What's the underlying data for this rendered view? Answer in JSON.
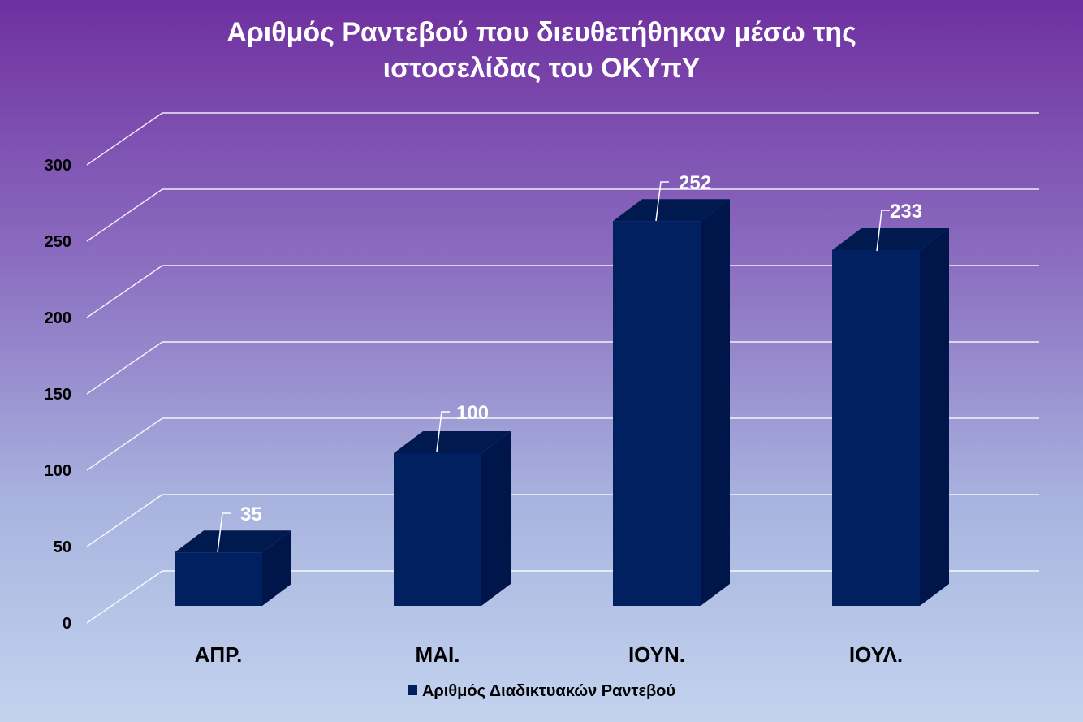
{
  "chart_data": {
    "type": "bar",
    "style": "3d-column",
    "title_lines": [
      "Αριθμός Ραντεβού που διευθετήθηκαν μέσω της",
      "ιστοσελίδας του ΟΚΥπΥ"
    ],
    "categories": [
      "ΑΠΡ.",
      "ΜΑΙ.",
      "ΙΟΥΝ.",
      "ΙΟΥΛ."
    ],
    "series": [
      {
        "name": "Αριθμός Διαδικτυακών Ραντεβού",
        "values": [
          35,
          100,
          252,
          233
        ],
        "color": "#002060"
      }
    ],
    "ylim": [
      0,
      300
    ],
    "yticks": [
      "0",
      "50",
      "100",
      "150",
      "200",
      "250",
      "300"
    ],
    "grid": true,
    "legend_position": "bottom",
    "data_labels": [
      "35",
      "100",
      "252",
      "233"
    ]
  }
}
